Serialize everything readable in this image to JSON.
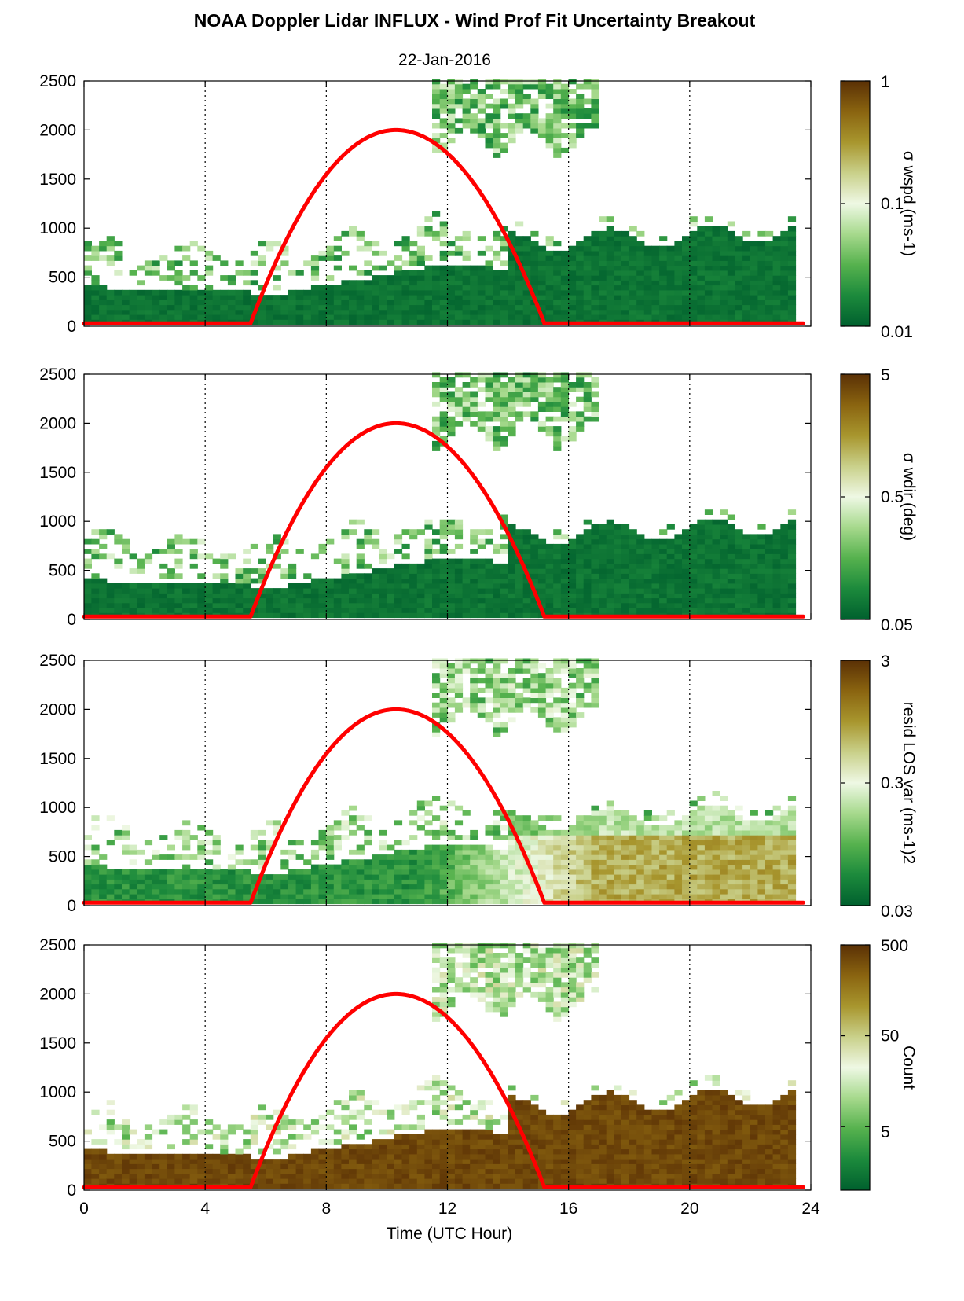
{
  "figure": {
    "title": "NOAA Doppler Lidar INFLUX - Wind Prof Fit Uncertainty Breakout",
    "subtitle": "22-Jan-2016",
    "xlabel": "Time (UTC Hour)"
  },
  "colors": {
    "cmap": [
      "#00602e",
      "#1c8a3c",
      "#56b24e",
      "#a6d98c",
      "#eef8e4",
      "#c9d08a",
      "#a8962e",
      "#8a6410",
      "#5a3005"
    ],
    "sun_curve": "#ff0000",
    "grid": "#000000"
  },
  "chart_data": [
    {
      "type": "heatmap",
      "name": "wspd",
      "xlim": [
        0,
        24
      ],
      "ylim": [
        0,
        2500
      ],
      "xticks": [
        0,
        4,
        8,
        12,
        16,
        20,
        24
      ],
      "yticks": [
        0,
        500,
        1000,
        1500,
        2000,
        2500
      ],
      "xgrid": [
        4,
        8,
        12,
        16,
        20
      ],
      "colorbar": {
        "scale": "log",
        "min": 0.01,
        "max": 1,
        "ticks": [
          "1",
          "0.1",
          "0.01"
        ],
        "label": "σ wspd (ms-1)"
      },
      "sun_elevation_curve": {
        "start_hour": 5.5,
        "peak_hour": 10.3,
        "end_hour": 15.2,
        "peak_value": 2000,
        "base_value": 30
      }
    },
    {
      "type": "heatmap",
      "name": "wdir",
      "xlim": [
        0,
        24
      ],
      "ylim": [
        0,
        2500
      ],
      "xticks": [
        0,
        4,
        8,
        12,
        16,
        20,
        24
      ],
      "yticks": [
        0,
        500,
        1000,
        1500,
        2000,
        2500
      ],
      "xgrid": [
        4,
        8,
        12,
        16,
        20
      ],
      "colorbar": {
        "scale": "log",
        "min": 0.05,
        "max": 5,
        "ticks": [
          "5",
          "0.5",
          "0.05"
        ],
        "label": "σ wdir (deg)"
      },
      "sun_elevation_curve": {
        "start_hour": 5.5,
        "peak_hour": 10.3,
        "end_hour": 15.2,
        "peak_value": 2000,
        "base_value": 30
      }
    },
    {
      "type": "heatmap",
      "name": "resid",
      "xlim": [
        0,
        24
      ],
      "ylim": [
        0,
        2500
      ],
      "xticks": [
        0,
        4,
        8,
        12,
        16,
        20,
        24
      ],
      "yticks": [
        0,
        500,
        1000,
        1500,
        2000,
        2500
      ],
      "xgrid": [
        4,
        8,
        12,
        16,
        20
      ],
      "colorbar": {
        "scale": "log",
        "min": 0.03,
        "max": 3,
        "ticks": [
          "3",
          "0.3",
          "0.03"
        ],
        "label": "resid LOS var (ms-1)2"
      },
      "sun_elevation_curve": {
        "start_hour": 5.5,
        "peak_hour": 10.3,
        "end_hour": 15.2,
        "peak_value": 2000,
        "base_value": 30
      }
    },
    {
      "type": "heatmap",
      "name": "count",
      "xlim": [
        0,
        24
      ],
      "ylim": [
        0,
        2500
      ],
      "xticks": [
        0,
        4,
        8,
        12,
        16,
        20,
        24
      ],
      "yticks": [
        0,
        500,
        1000,
        1500,
        2000,
        2500
      ],
      "xgrid": [
        4,
        8,
        12,
        16,
        20
      ],
      "colorbar": {
        "scale": "log",
        "min": 1,
        "max": 500,
        "ticks": [
          "500",
          "50",
          "5"
        ],
        "label": "Count"
      },
      "sun_elevation_curve": {
        "start_hour": 5.5,
        "peak_hour": 10.3,
        "end_hour": 15.2,
        "peak_value": 2000,
        "base_value": 30
      }
    }
  ]
}
